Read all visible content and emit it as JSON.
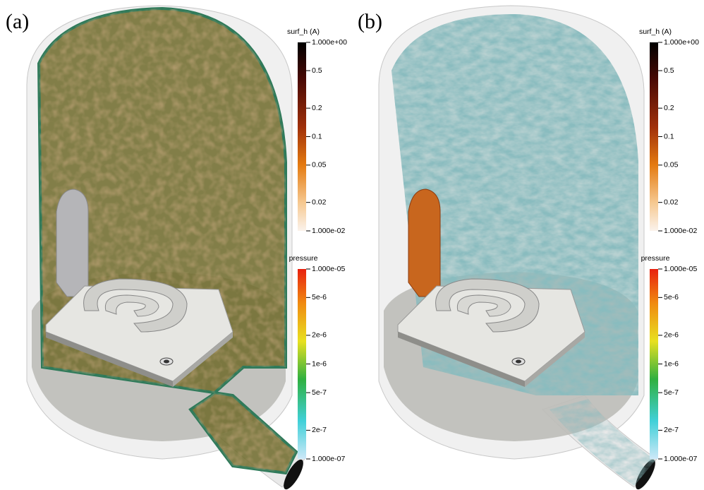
{
  "panels": [
    {
      "label": "(a)",
      "colorbars": [
        {
          "title": "surf_h (A)",
          "ticks": [
            "1.000e+00",
            "0.5",
            "0.2",
            "0.1",
            "0.05",
            "0.02",
            "1.000e-02"
          ]
        },
        {
          "title": "pressure",
          "ticks": [
            "1.000e-05",
            "5e-6",
            "2e-6",
            "1e-6",
            "5e-7",
            "2e-7",
            "1.000e-07"
          ]
        }
      ]
    },
    {
      "label": "(b)",
      "colorbars": [
        {
          "title": "surf_h (A)",
          "ticks": [
            "1.000e+00",
            "0.5",
            "0.2",
            "0.1",
            "0.05",
            "0.02",
            "1.000e-02"
          ]
        },
        {
          "title": "pressure",
          "ticks": [
            "1.000e-05",
            "5e-6",
            "2e-6",
            "1e-6",
            "5e-7",
            "2e-7",
            "1.000e-07"
          ]
        }
      ]
    }
  ]
}
